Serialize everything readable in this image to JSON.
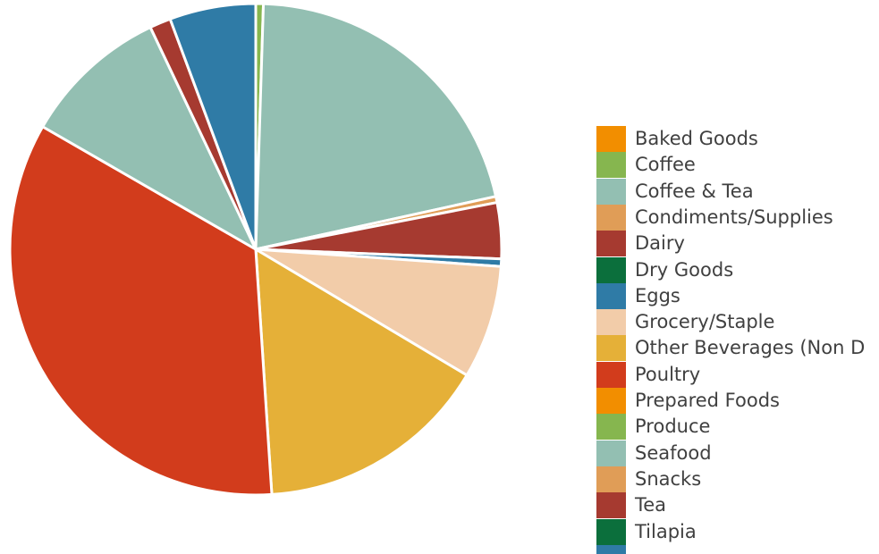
{
  "chart_data": {
    "type": "pie",
    "title": "",
    "legend_placement": "right",
    "slices": [
      {
        "label": "Baked Goods",
        "value": 0.0,
        "color": "#f28e00"
      },
      {
        "label": "Coffee",
        "value": 0.5,
        "color": "#86b64f"
      },
      {
        "label": "Coffee & Tea",
        "value": 21.2,
        "color": "#93bfb2"
      },
      {
        "label": "Condiments/Supplies",
        "value": 0.4,
        "color": "#e09d57"
      },
      {
        "label": "Dairy",
        "value": 3.7,
        "color": "#a63a30"
      },
      {
        "label": "Dry Goods",
        "value": 0.0,
        "color": "#0b6f3c"
      },
      {
        "label": "Eggs",
        "value": 0.5,
        "color": "#2f7ba6"
      },
      {
        "label": "Grocery/Staple",
        "value": 7.5,
        "color": "#f2cca9"
      },
      {
        "label": "Other Beverages (Non Dairy)",
        "value": 15.5,
        "color": "#e5b038"
      },
      {
        "label": "Poultry",
        "value": 34.6,
        "color": "#d23c1c"
      },
      {
        "label": "Prepared Foods",
        "value": 0.0,
        "color": "#f28e00"
      },
      {
        "label": "Produce",
        "value": 0.0,
        "color": "#86b64f"
      },
      {
        "label": "Seafood",
        "value": 9.7,
        "color": "#93bfb2"
      },
      {
        "label": "Snacks",
        "value": 0.0,
        "color": "#e09d57"
      },
      {
        "label": "Tea",
        "value": 1.4,
        "color": "#a63a30"
      },
      {
        "label": "Tilapia",
        "value": 0.0,
        "color": "#0b6f3c"
      },
      {
        "label": "Eggs",
        "value": 5.7,
        "color": "#2f7ba6"
      }
    ],
    "legend": [
      {
        "label": "Baked Goods",
        "color": "#f28e00"
      },
      {
        "label": "Coffee",
        "color": "#86b64f"
      },
      {
        "label": "Coffee & Tea",
        "color": "#93bfb2"
      },
      {
        "label": "Condiments/Supplies",
        "color": "#e09d57"
      },
      {
        "label": "Dairy",
        "color": "#a63a30"
      },
      {
        "label": "Dry Goods",
        "color": "#0b6f3c"
      },
      {
        "label": "Eggs",
        "color": "#2f7ba6"
      },
      {
        "label": "Grocery/Staple",
        "color": "#f2cca9"
      },
      {
        "label": "Other Beverages (Non D",
        "color": "#e5b038"
      },
      {
        "label": "Poultry",
        "color": "#d23c1c"
      },
      {
        "label": "Prepared Foods",
        "color": "#f28e00"
      },
      {
        "label": "Produce",
        "color": "#86b64f"
      },
      {
        "label": "Seafood",
        "color": "#93bfb2"
      },
      {
        "label": "Snacks",
        "color": "#e09d57"
      },
      {
        "label": "Tea",
        "color": "#a63a30"
      },
      {
        "label": "Tilapia",
        "color": "#0b6f3c"
      },
      {
        "label": "",
        "color": "#2f7ba6"
      }
    ]
  }
}
